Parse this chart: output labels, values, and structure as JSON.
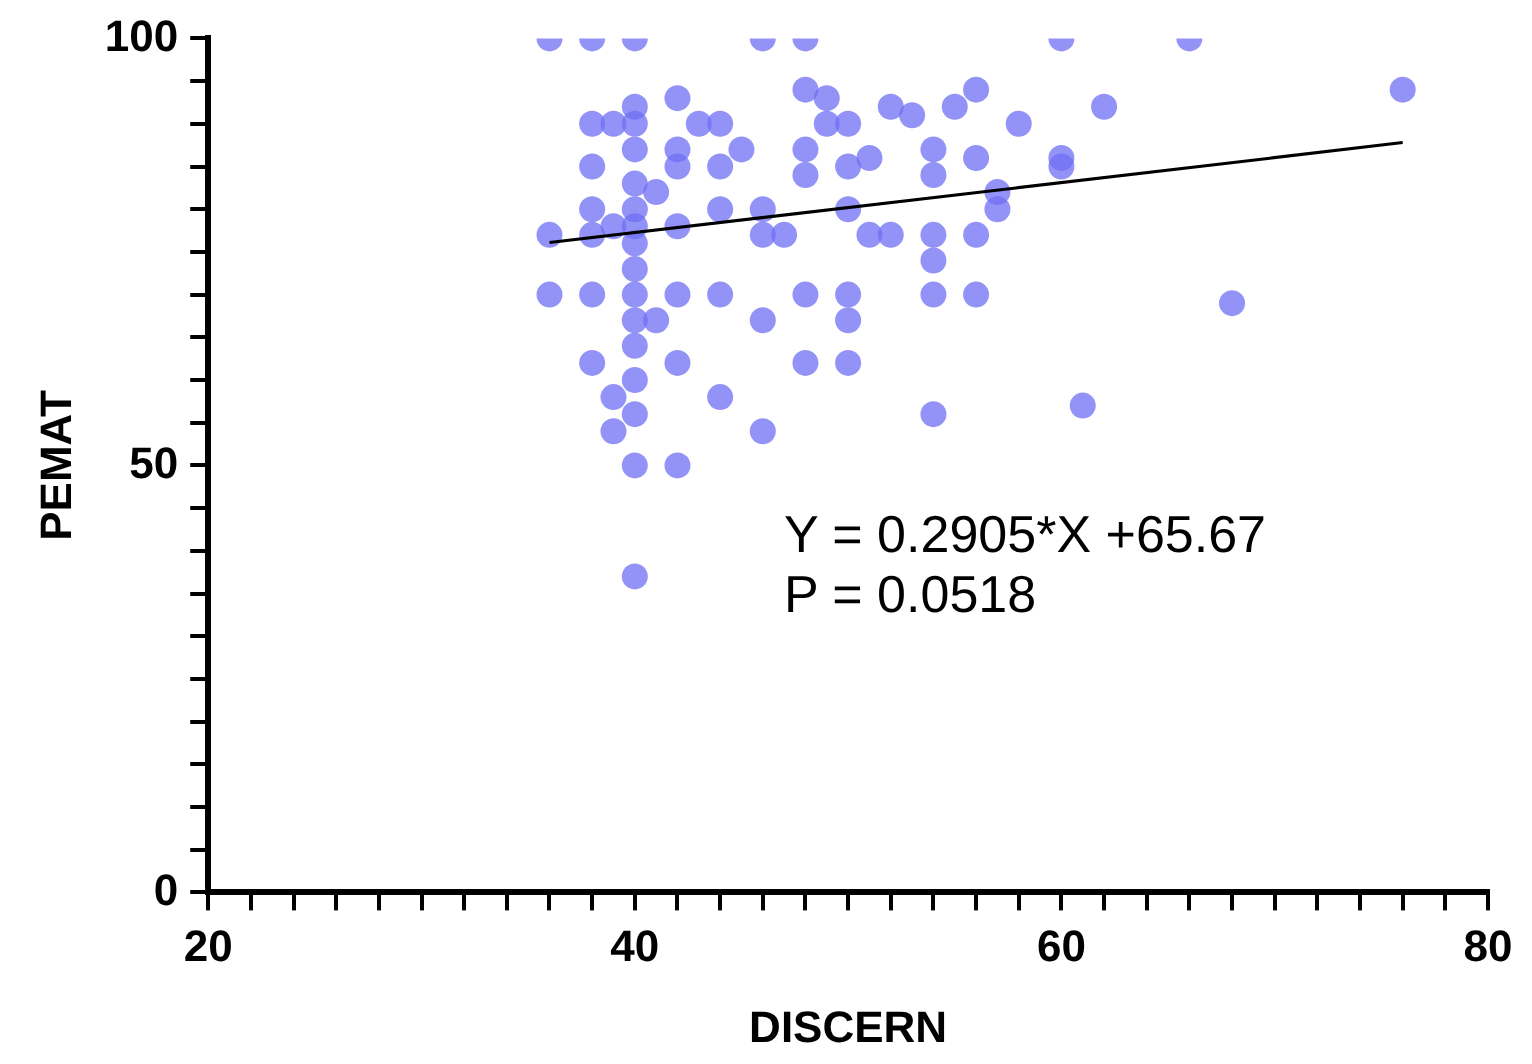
{
  "chart_data": {
    "type": "scatter",
    "xlabel": "DISCERN",
    "ylabel": "PEMAT",
    "xlim": [
      20,
      80
    ],
    "ylim": [
      0,
      100
    ],
    "xticks": [
      20,
      {
        "value": 22,
        "label": null
      },
      {
        "value": 24,
        "label": null
      },
      {
        "value": 26,
        "label": null
      },
      {
        "value": 28,
        "label": null
      },
      {
        "value": 30,
        "label": null
      },
      {
        "value": 32,
        "label": null
      },
      {
        "value": 34,
        "label": null
      },
      {
        "value": 36,
        "label": null
      },
      {
        "value": 38,
        "label": null
      },
      40,
      {
        "value": 42,
        "label": null
      },
      {
        "value": 44,
        "label": null
      },
      {
        "value": 46,
        "label": null
      },
      {
        "value": 48,
        "label": null
      },
      {
        "value": 50,
        "label": null
      },
      {
        "value": 52,
        "label": null
      },
      {
        "value": 54,
        "label": null
      },
      {
        "value": 56,
        "label": null
      },
      {
        "value": 58,
        "label": null
      },
      60,
      {
        "value": 62,
        "label": null
      },
      {
        "value": 64,
        "label": null
      },
      {
        "value": 66,
        "label": null
      },
      {
        "value": 68,
        "label": null
      },
      {
        "value": 70,
        "label": null
      },
      {
        "value": 72,
        "label": null
      },
      {
        "value": 74,
        "label": null
      },
      {
        "value": 76,
        "label": null
      },
      {
        "value": 78,
        "label": null
      },
      80
    ],
    "yticks": [
      0,
      {
        "value": 5,
        "label": null
      },
      {
        "value": 10,
        "label": null
      },
      {
        "value": 15,
        "label": null
      },
      {
        "value": 20,
        "label": null
      },
      {
        "value": 25,
        "label": null
      },
      {
        "value": 30,
        "label": null
      },
      {
        "value": 35,
        "label": null
      },
      {
        "value": 40,
        "label": null
      },
      {
        "value": 45,
        "label": null
      },
      50,
      {
        "value": 55,
        "label": null
      },
      {
        "value": 60,
        "label": null
      },
      {
        "value": 65,
        "label": null
      },
      {
        "value": 70,
        "label": null
      },
      {
        "value": 75,
        "label": null
      },
      {
        "value": 80,
        "label": null
      },
      {
        "value": 85,
        "label": null
      },
      {
        "value": 90,
        "label": null
      },
      {
        "value": 95,
        "label": null
      },
      100
    ],
    "grid": false,
    "legend": false,
    "series": [
      {
        "marker": "circle",
        "color": "#7070f4",
        "x": [
          36,
          36,
          36,
          38,
          38,
          38,
          38,
          38,
          38,
          38,
          39,
          39,
          39,
          39,
          40,
          40,
          40,
          40,
          40,
          40,
          40,
          40,
          40,
          40,
          40,
          40,
          40,
          40,
          40,
          40,
          41,
          41,
          42,
          42,
          42,
          42,
          42,
          42,
          42,
          43,
          44,
          44,
          44,
          44,
          44,
          45,
          46,
          46,
          46,
          46,
          46,
          47,
          48,
          48,
          48,
          48,
          48,
          48,
          49,
          49,
          50,
          50,
          50,
          50,
          50,
          50,
          51,
          51,
          52,
          52,
          53,
          54,
          54,
          54,
          54,
          54,
          54,
          55,
          56,
          56,
          56,
          56,
          57,
          57,
          58,
          60,
          60,
          60,
          61,
          62,
          66,
          68,
          76
        ],
        "values": [
          100,
          77,
          70,
          100,
          90,
          85,
          80,
          77,
          70,
          62,
          90,
          78,
          54,
          58,
          100,
          92,
          90,
          87,
          83,
          80,
          78,
          76,
          73,
          70,
          67,
          64,
          60,
          56,
          50,
          37,
          82,
          67,
          93,
          87,
          85,
          78,
          70,
          62,
          50,
          90,
          90,
          85,
          80,
          70,
          58,
          87,
          100,
          80,
          77,
          67,
          54,
          77,
          100,
          94,
          87,
          84,
          70,
          62,
          93,
          90,
          90,
          85,
          80,
          70,
          67,
          62,
          86,
          77,
          92,
          77,
          91,
          87,
          84,
          77,
          74,
          70,
          56,
          92,
          94,
          77,
          70,
          86,
          82,
          80,
          90,
          100,
          86,
          85,
          57,
          92,
          100,
          69,
          94
        ]
      },
      {
        "type": "line",
        "marker": "none",
        "color": "#000000",
        "x": [
          36,
          76
        ],
        "values": [
          76.1,
          87.8
        ]
      }
    ],
    "annotations": [
      "Y = 0.2905*X +65.67",
      "P = 0.0518"
    ]
  }
}
